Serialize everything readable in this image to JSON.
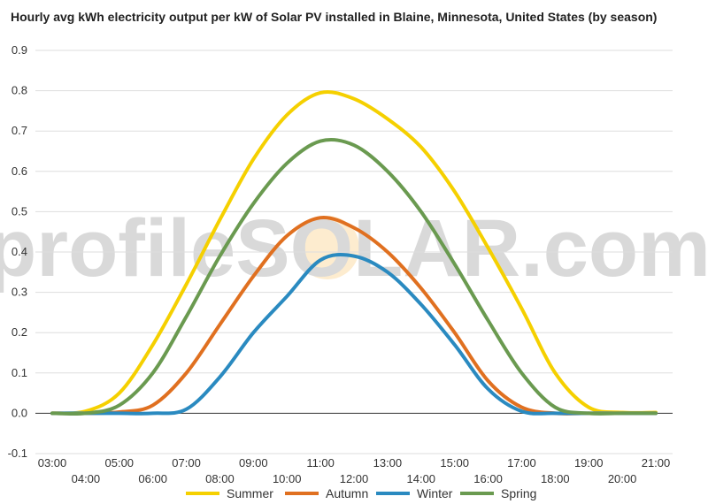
{
  "chart_data": {
    "type": "line",
    "title": "Hourly avg kWh electricity output per kW of Solar PV installed in Blaine, Minnesota, United States (by season)",
    "xlabel": "",
    "ylabel": "",
    "ylim": [
      -0.1,
      0.9
    ],
    "yticks": [
      "-0.1",
      "0.0",
      "0.1",
      "0.2",
      "0.3",
      "0.4",
      "0.5",
      "0.6",
      "0.7",
      "0.8",
      "0.9"
    ],
    "xticks": [
      "03:00",
      "04:00",
      "05:00",
      "06:00",
      "07:00",
      "08:00",
      "09:00",
      "10:00",
      "11:00",
      "12:00",
      "13:00",
      "14:00",
      "15:00",
      "16:00",
      "17:00",
      "18:00",
      "19:00",
      "20:00",
      "21:00"
    ],
    "x": [
      3,
      4,
      5,
      6,
      7,
      8,
      9,
      10,
      11,
      12,
      13,
      14,
      15,
      16,
      17,
      18,
      19,
      20,
      21
    ],
    "grid": true,
    "legend_position": "bottom",
    "watermark": "profileSOLAR.com",
    "series": [
      {
        "name": "Summer",
        "color": "#f5d000",
        "values": [
          0.0,
          0.005,
          0.05,
          0.17,
          0.32,
          0.48,
          0.63,
          0.74,
          0.795,
          0.78,
          0.73,
          0.66,
          0.55,
          0.41,
          0.26,
          0.1,
          0.015,
          0.002,
          0.002
        ]
      },
      {
        "name": "Autumn",
        "color": "#e07020",
        "values": [
          0.0,
          0.0,
          0.003,
          0.02,
          0.1,
          0.22,
          0.34,
          0.44,
          0.485,
          0.46,
          0.4,
          0.31,
          0.2,
          0.08,
          0.015,
          0.0,
          0.0,
          0.0,
          0.0
        ]
      },
      {
        "name": "Winter",
        "color": "#2a8ac0",
        "values": [
          0.0,
          0.0,
          0.0,
          0.0,
          0.01,
          0.09,
          0.2,
          0.29,
          0.38,
          0.39,
          0.35,
          0.27,
          0.17,
          0.06,
          0.005,
          0.0,
          0.0,
          0.0,
          0.0
        ]
      },
      {
        "name": "Spring",
        "color": "#6a9a50",
        "values": [
          0.0,
          0.0,
          0.02,
          0.1,
          0.24,
          0.39,
          0.52,
          0.62,
          0.675,
          0.665,
          0.6,
          0.5,
          0.37,
          0.23,
          0.1,
          0.015,
          0.0,
          0.0,
          0.0
        ]
      }
    ]
  }
}
